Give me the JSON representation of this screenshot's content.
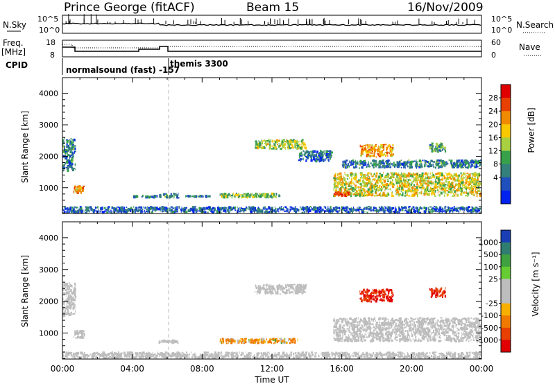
{
  "header": {
    "station": "Prince George (fitACF)",
    "beam": "Beam 15",
    "date": "16/Nov/2009"
  },
  "strip_nsky": {
    "left_label": "N.Sky",
    "right_label": "N.Search",
    "ticks": [
      "10^5",
      "10^0"
    ]
  },
  "strip_freq": {
    "left_label_1": "Freq.",
    "left_label_2": "[MHz]",
    "right_label": "Nave",
    "left_ticks": [
      "18",
      "8"
    ],
    "right_ticks": [
      "60",
      "0"
    ]
  },
  "cpid": {
    "label": "CPID",
    "program_1": "normalsound (fast) -157",
    "program_2": "themis 3300"
  },
  "x_axis": {
    "label": "Time UT",
    "ticks": [
      "00:00",
      "04:00",
      "08:00",
      "12:00",
      "16:00",
      "20:00",
      "00:00"
    ]
  },
  "power_panel": {
    "ylabel": "Slant Range [km]",
    "yticks": [
      "4000",
      "3000",
      "2000",
      "1000"
    ],
    "colorbar_label": "Power [dB]",
    "colorbar_ticks": [
      "28",
      "24",
      "20",
      "16",
      "12",
      "8",
      "4"
    ],
    "colors": [
      "#0022ee",
      "#1f50bd",
      "#34807a",
      "#37a14a",
      "#a8d040",
      "#f8c800",
      "#f08a00",
      "#e84000",
      "#e00000"
    ]
  },
  "velocity_panel": {
    "ylabel": "Slant Range [km]",
    "yticks": [
      "4000",
      "3000",
      "2000",
      "1000"
    ],
    "colorbar_label": "Velocity [m s⁻¹]",
    "colorbar_ticks": [
      "1000",
      "500",
      "100",
      "25",
      "-25",
      "-100",
      "-500",
      "-1000"
    ],
    "colors": [
      "#1a3eb4",
      "#2f7c70",
      "#3fa140",
      "#66cc33",
      "#bdbdbd",
      "#bdbdbd",
      "#f8b000",
      "#f07a00",
      "#e84000",
      "#e00000"
    ]
  },
  "chart_data": [
    {
      "type": "heatmap",
      "title": "",
      "quantity": "Power [dB]",
      "x": "Time UT (hours)",
      "xlim": [
        0,
        24
      ],
      "ylim": [
        180,
        4500
      ],
      "ylabel": "Slant Range [km]",
      "vlim": [
        0,
        32
      ],
      "regions": [
        {
          "t0": 0.0,
          "t1": 0.8,
          "r0": 1500,
          "r1": 2600,
          "v": 9
        },
        {
          "t0": 0.6,
          "t1": 1.3,
          "r0": 800,
          "r1": 1100,
          "v": 22
        },
        {
          "t0": 4.0,
          "t1": 5.5,
          "r0": 650,
          "r1": 780,
          "v": 8
        },
        {
          "t0": 5.5,
          "t1": 6.7,
          "r0": 650,
          "r1": 850,
          "v": 10
        },
        {
          "t0": 7.0,
          "t1": 8.5,
          "r0": 690,
          "r1": 760,
          "v": 9
        },
        {
          "t0": 9.0,
          "t1": 12.5,
          "r0": 650,
          "r1": 850,
          "v": 14
        },
        {
          "t0": 11.0,
          "t1": 14.0,
          "r0": 2200,
          "r1": 2550,
          "v": 16
        },
        {
          "t0": 13.5,
          "t1": 15.5,
          "r0": 1800,
          "r1": 2200,
          "v": 8
        },
        {
          "t0": 15.5,
          "t1": 24.0,
          "r0": 700,
          "r1": 1500,
          "v": 18
        },
        {
          "t0": 15.5,
          "t1": 16.5,
          "r0": 700,
          "r1": 900,
          "v": 28
        },
        {
          "t0": 16.0,
          "t1": 24.0,
          "r0": 1600,
          "r1": 1900,
          "v": 9
        },
        {
          "t0": 17.0,
          "t1": 19.0,
          "r0": 1950,
          "r1": 2400,
          "v": 22
        },
        {
          "t0": 21.0,
          "t1": 22.0,
          "r0": 2100,
          "r1": 2450,
          "v": 12
        },
        {
          "t0": 0.0,
          "t1": 24.0,
          "r0": 180,
          "r1": 420,
          "v": 6
        }
      ]
    },
    {
      "type": "heatmap",
      "title": "",
      "quantity": "Velocity [m s⁻¹]",
      "x": "Time UT (hours)",
      "xlim": [
        0,
        24
      ],
      "ylim": [
        180,
        4500
      ],
      "ylabel": "Slant Range [km]",
      "vlim": [
        -1000,
        1000
      ],
      "regions": [
        {
          "t0": 0.0,
          "t1": 0.8,
          "r0": 1500,
          "r1": 2600,
          "v": 0
        },
        {
          "t0": 0.6,
          "t1": 1.3,
          "r0": 800,
          "r1": 1100,
          "v": 0
        },
        {
          "t0": 5.5,
          "t1": 6.7,
          "r0": 650,
          "r1": 800,
          "v": 0
        },
        {
          "t0": 9.0,
          "t1": 13.5,
          "r0": 650,
          "r1": 850,
          "v": -100
        },
        {
          "t0": 11.0,
          "t1": 14.0,
          "r0": 2200,
          "r1": 2550,
          "v": 0
        },
        {
          "t0": 15.5,
          "t1": 24.0,
          "r0": 700,
          "r1": 1500,
          "v": 0
        },
        {
          "t0": 17.0,
          "t1": 19.0,
          "r0": 1950,
          "r1": 2400,
          "v": -500
        },
        {
          "t0": 21.0,
          "t1": 22.0,
          "r0": 2100,
          "r1": 2450,
          "v": -500
        },
        {
          "t0": 0.0,
          "t1": 24.0,
          "r0": 180,
          "r1": 420,
          "v": 0
        }
      ]
    }
  ]
}
